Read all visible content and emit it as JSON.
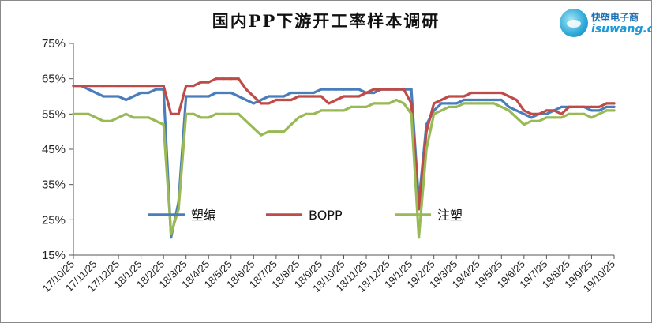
{
  "title": "国内PP下游开工率样本调研",
  "logo": {
    "cn": "快塑电子商",
    "en": "isuwang.co"
  },
  "chart_data": {
    "type": "line",
    "title": "国内PP下游开工率样本调研",
    "xlabel": "",
    "ylabel": "",
    "ylim": [
      15,
      75
    ],
    "y_ticks": [
      "75%",
      "65%",
      "55%",
      "45%",
      "35%",
      "25%",
      "15%"
    ],
    "x_ticks": [
      "17/10/25",
      "17/11/25",
      "17/12/25",
      "18/1/25",
      "18/2/25",
      "18/3/25",
      "18/4/25",
      "18/5/25",
      "18/6/25",
      "18/7/25",
      "18/8/25",
      "18/9/25",
      "18/10/25",
      "18/11/25",
      "18/12/25",
      "19/1/25",
      "19/2/25",
      "19/3/25",
      "19/4/25",
      "19/5/25",
      "19/6/25",
      "19/7/25",
      "19/8/25",
      "19/9/25",
      "19/10/25"
    ],
    "grid": false,
    "legend": "inside-bottom",
    "x_points": [
      "17/10/25",
      "17/11/4",
      "17/11/14",
      "17/11/25",
      "17/12/4",
      "17/12/14",
      "17/12/25",
      "18/1/4",
      "18/1/14",
      "18/1/25",
      "18/2/4",
      "18/2/14",
      "18/2/25",
      "18/3/4",
      "18/3/14",
      "18/3/25",
      "18/4/4",
      "18/4/14",
      "18/4/25",
      "18/5/4",
      "18/5/14",
      "18/5/25",
      "18/6/4",
      "18/6/14",
      "18/6/25",
      "18/7/4",
      "18/7/14",
      "18/7/25",
      "18/8/4",
      "18/8/14",
      "18/8/25",
      "18/9/4",
      "18/9/14",
      "18/9/25",
      "18/10/4",
      "18/10/14",
      "18/10/25",
      "18/11/4",
      "18/11/14",
      "18/11/25",
      "18/12/4",
      "18/12/14",
      "18/12/25",
      "19/1/4",
      "19/1/14",
      "19/1/25",
      "19/2/4",
      "19/2/14",
      "19/2/25",
      "19/3/4",
      "19/3/14",
      "19/3/25",
      "19/4/4",
      "19/4/14",
      "19/4/25",
      "19/5/4",
      "19/5/14",
      "19/5/25",
      "19/6/4",
      "19/6/14",
      "19/6/25",
      "19/7/4",
      "19/7/14",
      "19/7/25",
      "19/8/4",
      "19/8/14",
      "19/8/25",
      "19/9/4",
      "19/9/14",
      "19/9/25",
      "19/10/4",
      "19/10/14",
      "19/10/25"
    ],
    "series": [
      {
        "name": "塑编",
        "color": "#4a7ebb",
        "values": [
          63,
          63,
          62,
          61,
          60,
          60,
          60,
          59,
          60,
          61,
          61,
          62,
          62,
          20,
          30,
          60,
          60,
          60,
          60,
          61,
          61,
          61,
          60,
          59,
          58,
          59,
          60,
          60,
          60,
          61,
          61,
          61,
          61,
          62,
          62,
          62,
          62,
          62,
          62,
          61,
          61,
          62,
          62,
          62,
          62,
          62,
          30,
          52,
          56,
          58,
          58,
          58,
          59,
          59,
          59,
          59,
          59,
          59,
          57,
          56,
          55,
          54,
          55,
          55,
          56,
          57,
          57,
          57,
          57,
          56,
          56,
          57,
          57
        ]
      },
      {
        "name": "BOPP",
        "color": "#be4b48",
        "values": [
          63,
          63,
          63,
          63,
          63,
          63,
          63,
          63,
          63,
          63,
          63,
          63,
          63,
          55,
          55,
          63,
          63,
          64,
          64,
          65,
          65,
          65,
          65,
          62,
          60,
          58,
          58,
          59,
          59,
          59,
          60,
          60,
          60,
          60,
          58,
          59,
          60,
          60,
          60,
          61,
          62,
          62,
          62,
          62,
          62,
          58,
          28,
          50,
          58,
          59,
          60,
          60,
          60,
          61,
          61,
          61,
          61,
          61,
          60,
          59,
          56,
          55,
          55,
          56,
          56,
          55,
          57,
          57,
          57,
          57,
          57,
          58,
          58
        ]
      },
      {
        "name": "注塑",
        "color": "#98b954",
        "values": [
          55,
          55,
          55,
          54,
          53,
          53,
          54,
          55,
          54,
          54,
          54,
          53,
          52,
          21,
          28,
          55,
          55,
          54,
          54,
          55,
          55,
          55,
          55,
          53,
          51,
          49,
          50,
          50,
          50,
          52,
          54,
          55,
          55,
          56,
          56,
          56,
          56,
          57,
          57,
          57,
          58,
          58,
          58,
          59,
          58,
          55,
          20,
          45,
          55,
          56,
          57,
          57,
          58,
          58,
          58,
          58,
          58,
          57,
          56,
          54,
          52,
          53,
          53,
          54,
          54,
          54,
          55,
          55,
          55,
          54,
          55,
          56,
          56
        ]
      }
    ]
  }
}
